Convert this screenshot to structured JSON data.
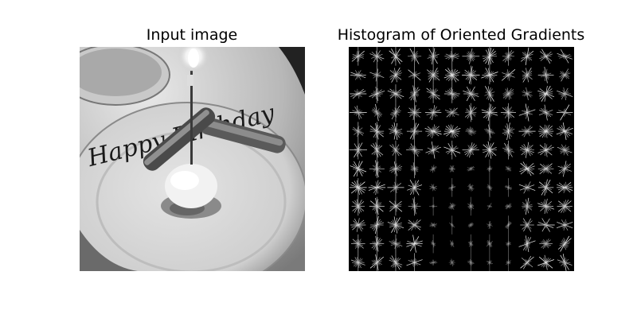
{
  "figure": {
    "left_title": "Input image",
    "right_title": "Histogram of Oriented Gradients"
  },
  "photo": {
    "plate_text": "Happy Birthday"
  }
}
